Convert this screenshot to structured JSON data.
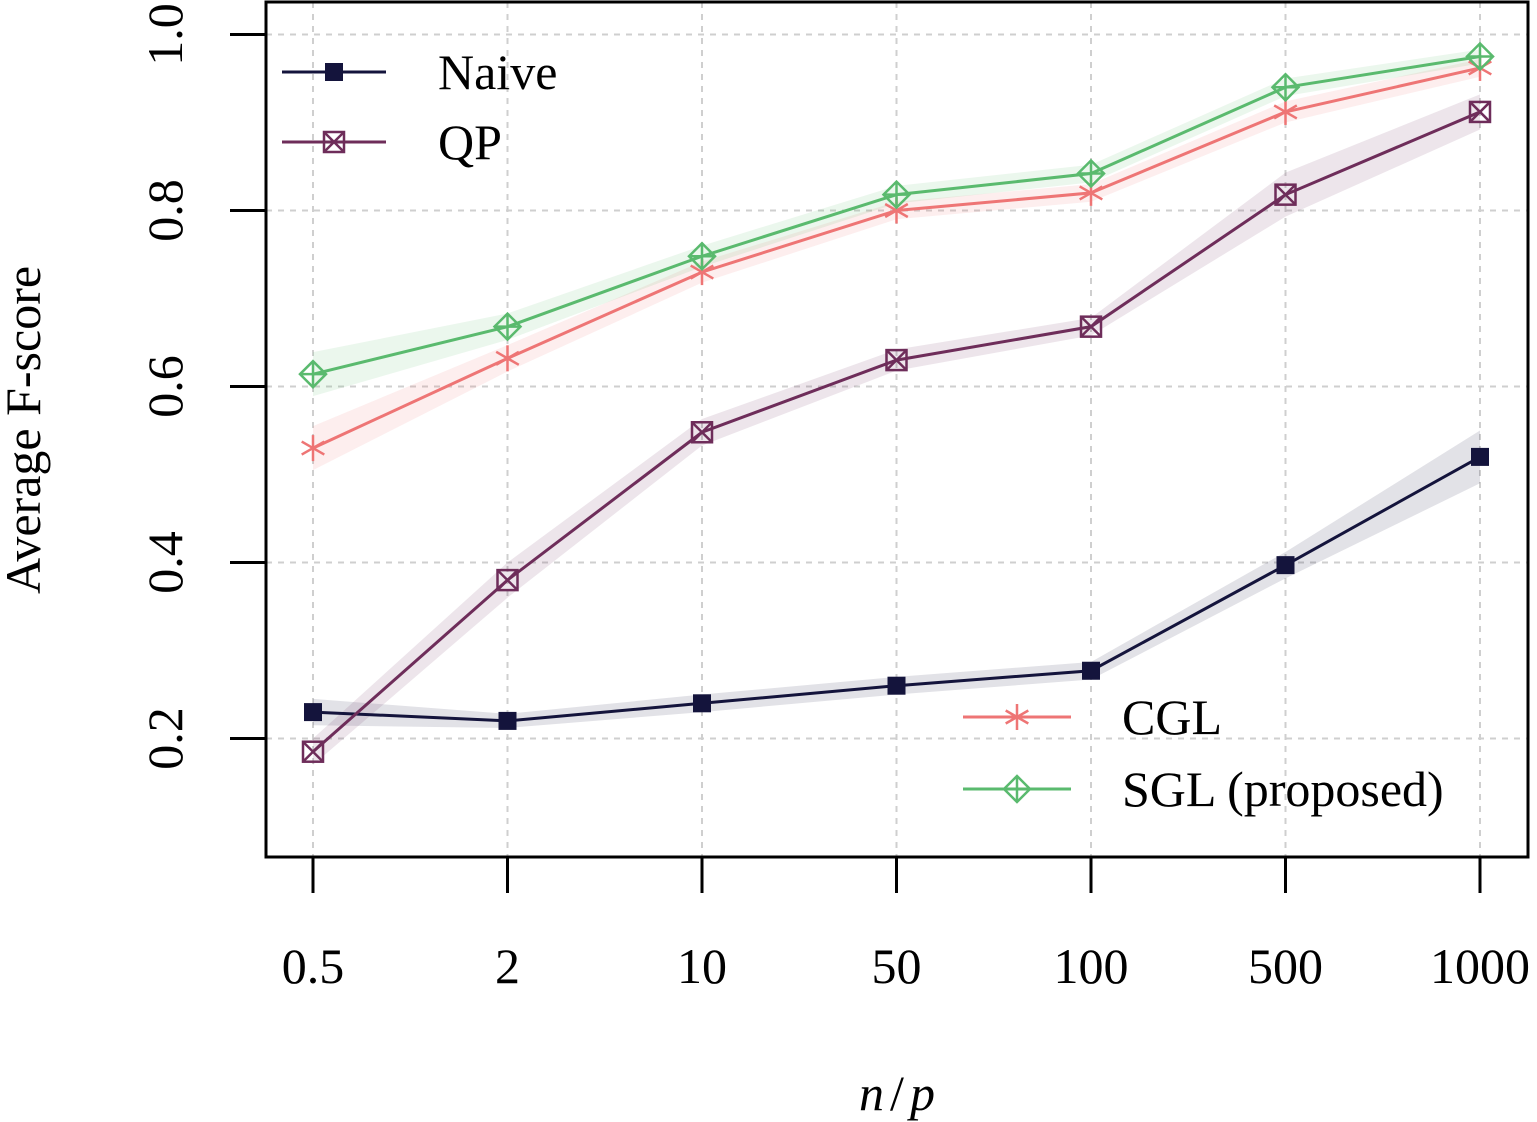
{
  "chart_data": {
    "type": "line",
    "xlabel_parts": [
      "n",
      "/",
      "p"
    ],
    "ylabel": "Average F-score",
    "categories": [
      "0.5",
      "2",
      "10",
      "50",
      "100",
      "500",
      "1000"
    ],
    "yticks": [
      "0.2",
      "0.4",
      "0.6",
      "0.8",
      "1.0"
    ],
    "ylim": [
      0.08,
      1.05
    ],
    "grid": true,
    "series": [
      {
        "name": "Naive",
        "color": "#14143c",
        "marker": "filled-square",
        "values": [
          0.23,
          0.22,
          0.24,
          0.26,
          0.277,
          0.397,
          0.52
        ],
        "band": [
          0.015,
          0.008,
          0.01,
          0.01,
          0.01,
          0.015,
          0.03
        ]
      },
      {
        "name": "QP",
        "color": "#6e2d5a",
        "marker": "boxed-x",
        "values": [
          0.185,
          0.38,
          0.548,
          0.63,
          0.668,
          0.818,
          0.912
        ],
        "band": [
          0.015,
          0.02,
          0.015,
          0.012,
          0.01,
          0.025,
          0.02
        ]
      },
      {
        "name": "CGL",
        "color": "#ee7575",
        "marker": "asterisk",
        "values": [
          0.53,
          0.632,
          0.73,
          0.8,
          0.82,
          0.912,
          0.962
        ],
        "band": [
          0.025,
          0.015,
          0.012,
          0.01,
          0.01,
          0.012,
          0.01
        ]
      },
      {
        "name": "SGL (proposed)",
        "color": "#5aba6e",
        "marker": "diamond-plus",
        "values": [
          0.614,
          0.668,
          0.748,
          0.818,
          0.842,
          0.94,
          0.975
        ],
        "band": [
          0.025,
          0.015,
          0.012,
          0.01,
          0.01,
          0.01,
          0.008
        ]
      }
    ],
    "legend": [
      {
        "group": "top-left",
        "series": [
          "Naive",
          "QP"
        ]
      },
      {
        "group": "bottom-right",
        "series": [
          "CGL",
          "SGL (proposed)"
        ]
      }
    ]
  }
}
